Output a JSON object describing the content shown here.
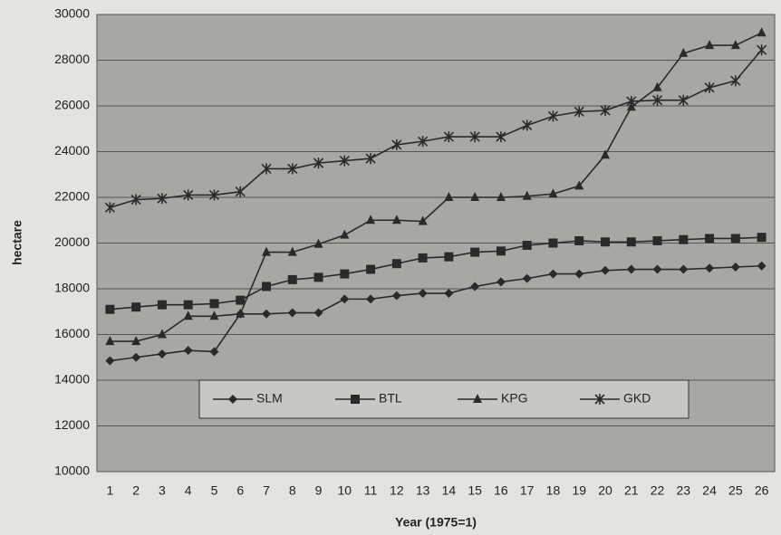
{
  "chart_data": {
    "type": "line",
    "xlabel": "Year (1975=1)",
    "ylabel": "hectare",
    "categories": [
      1,
      2,
      3,
      4,
      5,
      6,
      7,
      8,
      9,
      10,
      11,
      12,
      13,
      14,
      15,
      16,
      17,
      18,
      19,
      20,
      21,
      22,
      23,
      24,
      25,
      26
    ],
    "series": [
      {
        "name": "SLM",
        "color": "#2a2a2a",
        "marker": "diamond",
        "values": [
          14850,
          15000,
          15150,
          15300,
          15250,
          16900,
          16900,
          16950,
          16950,
          17550,
          17550,
          17700,
          17800,
          17800,
          18100,
          18300,
          18450,
          18650,
          18650,
          18800,
          18850,
          18850,
          18850,
          18900,
          18950,
          19000
        ]
      },
      {
        "name": "BTL",
        "color": "#2a2a2a",
        "marker": "square",
        "values": [
          17100,
          17200,
          17300,
          17300,
          17350,
          17500,
          18100,
          18400,
          18500,
          18650,
          18850,
          19100,
          19350,
          19400,
          19600,
          19650,
          19900,
          20000,
          20100,
          20050,
          20050,
          20100,
          20150,
          20200,
          20200,
          20250
        ]
      },
      {
        "name": "KPG",
        "color": "#2a2a2a",
        "marker": "triangle",
        "values": [
          15700,
          15700,
          16000,
          16800,
          16800,
          16900,
          19600,
          19600,
          19950,
          20350,
          21000,
          21000,
          20950,
          22000,
          22000,
          22000,
          22050,
          22150,
          22500,
          23850,
          25950,
          26800,
          28300,
          28650,
          28650,
          29200
        ]
      },
      {
        "name": "GKD",
        "color": "#2a2a2a",
        "marker": "asterisk",
        "values": [
          21550,
          21900,
          21950,
          22100,
          22100,
          22250,
          23250,
          23250,
          23500,
          23600,
          23700,
          24300,
          24450,
          24650,
          24650,
          24650,
          25150,
          25550,
          25750,
          25800,
          26200,
          26250,
          26250,
          26800,
          27100,
          28450
        ]
      }
    ],
    "ylim": [
      10000,
      30000
    ],
    "yticks": [
      10000,
      12000,
      14000,
      16000,
      18000,
      20000,
      22000,
      24000,
      26000,
      28000,
      30000
    ],
    "grid": true,
    "legend": "lower center"
  }
}
